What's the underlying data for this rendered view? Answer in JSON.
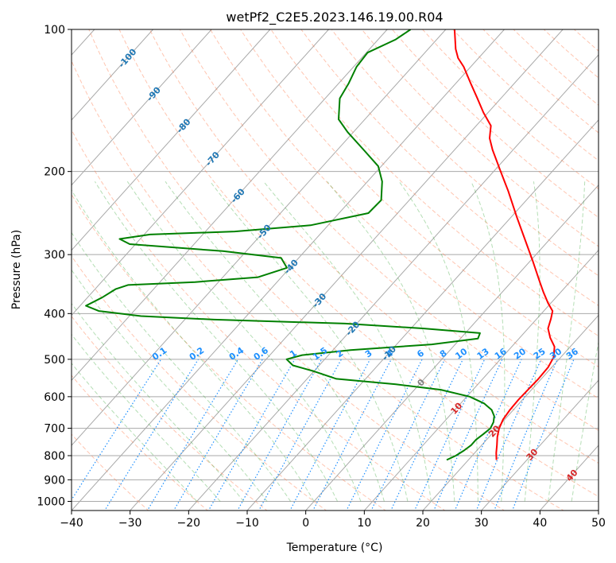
{
  "chart_data": {
    "type": "line",
    "subtype": "skew-t log-p diagram",
    "title": "wetPf2_C2E5.2023.146.19.00.R04",
    "xlabel": "Temperature (°C)",
    "ylabel": "Pressure (hPa)",
    "xlim": [
      -40,
      50
    ],
    "ylim": [
      1050,
      100
    ],
    "x_ticks": [
      -40,
      -30,
      -20,
      -10,
      0,
      10,
      20,
      30,
      40,
      50
    ],
    "x_tick_labels": [
      "−40",
      "−30",
      "−20",
      "−10",
      "0",
      "10",
      "20",
      "30",
      "40",
      "50"
    ],
    "y_ticks": [
      100,
      200,
      300,
      400,
      500,
      600,
      700,
      800,
      900,
      1000
    ],
    "y_tick_labels": [
      "100",
      "200",
      "300",
      "400",
      "500",
      "600",
      "700",
      "800",
      "900",
      "1000"
    ],
    "isotherm_values": [
      -100,
      -90,
      -80,
      -70,
      -60,
      -50,
      -40,
      -30,
      -20,
      -10,
      0,
      10,
      20,
      30,
      40
    ],
    "isotherm_labels": [
      "-100",
      "-90",
      "-80",
      "-70",
      "-60",
      "-50",
      "-40",
      "-30",
      "-20",
      "-10",
      "0",
      "10",
      "20",
      "30",
      "40"
    ],
    "mixing_ratio_values": [
      0.1,
      0.2,
      0.4,
      0.6,
      1,
      1.5,
      2,
      3,
      4,
      6,
      8,
      10,
      13,
      16,
      20,
      25,
      30,
      36
    ],
    "mixing_ratio_labels": [
      "0.1",
      "0.2",
      "0.4",
      "0.6",
      "1",
      "1.5",
      "2",
      "3",
      "4",
      "6",
      "8",
      "10",
      "13",
      "16",
      "20",
      "25",
      "30",
      "36"
    ],
    "series": [
      {
        "name": "Temperature",
        "color": "#ff0000",
        "points": [
          [
            817,
            24.8
          ],
          [
            790,
            23.7
          ],
          [
            760,
            22.6
          ],
          [
            730,
            21.4
          ],
          [
            700,
            20.4
          ],
          [
            670,
            19.7
          ],
          [
            640,
            19.4
          ],
          [
            610,
            19.3
          ],
          [
            580,
            19.4
          ],
          [
            550,
            19.5
          ],
          [
            520,
            19.4
          ],
          [
            495,
            18.8
          ],
          [
            470,
            17.3
          ],
          [
            450,
            15.2
          ],
          [
            430,
            13.4
          ],
          [
            410,
            12.4
          ],
          [
            395,
            11.5
          ],
          [
            380,
            9.5
          ],
          [
            360,
            7.0
          ],
          [
            340,
            4.5
          ],
          [
            310,
            0.5
          ],
          [
            280,
            -4.0
          ],
          [
            250,
            -9.0
          ],
          [
            220,
            -14.5
          ],
          [
            200,
            -18.8
          ],
          [
            180,
            -23.5
          ],
          [
            170,
            -25.8
          ],
          [
            160,
            -27.5
          ],
          [
            150,
            -30.8
          ],
          [
            140,
            -34.0
          ],
          [
            130,
            -37.5
          ],
          [
            120,
            -41.2
          ],
          [
            115,
            -43.5
          ],
          [
            110,
            -45.3
          ],
          [
            100,
            -48.5
          ]
        ]
      },
      {
        "name": "Dewpoint",
        "color": "#008000",
        "points": [
          [
            817,
            16.3
          ],
          [
            800,
            17.2
          ],
          [
            780,
            17.8
          ],
          [
            760,
            18.2
          ],
          [
            740,
            18.2
          ],
          [
            720,
            18.6
          ],
          [
            700,
            18.9
          ],
          [
            680,
            18.5
          ],
          [
            660,
            17.7
          ],
          [
            640,
            16.3
          ],
          [
            620,
            14.0
          ],
          [
            600,
            10.5
          ],
          [
            580,
            4.5
          ],
          [
            565,
            -4.0
          ],
          [
            550,
            -15.0
          ],
          [
            530,
            -20.0
          ],
          [
            515,
            -24.5
          ],
          [
            500,
            -26.5
          ],
          [
            490,
            -24.5
          ],
          [
            478,
            -17.0
          ],
          [
            465,
            -4.0
          ],
          [
            452,
            3.0
          ],
          [
            440,
            2.5
          ],
          [
            430,
            -8.0
          ],
          [
            420,
            -22.0
          ],
          [
            412,
            -45.0
          ],
          [
            405,
            -58.0
          ],
          [
            395,
            -66.0
          ],
          [
            385,
            -69.0
          ],
          [
            370,
            -67.5
          ],
          [
            355,
            -66.5
          ],
          [
            348,
            -65.0
          ],
          [
            343,
            -54.0
          ],
          [
            335,
            -44.0
          ],
          [
            320,
            -40.5
          ],
          [
            305,
            -43.0
          ],
          [
            295,
            -54.0
          ],
          [
            285,
            -71.0
          ],
          [
            278,
            -73.5
          ],
          [
            272,
            -69.0
          ],
          [
            268,
            -55.0
          ],
          [
            260,
            -43.0
          ],
          [
            245,
            -35.0
          ],
          [
            230,
            -34.8
          ],
          [
            210,
            -37.5
          ],
          [
            195,
            -40.5
          ],
          [
            180,
            -45.5
          ],
          [
            165,
            -51.0
          ],
          [
            155,
            -54.5
          ],
          [
            140,
            -57.5
          ],
          [
            130,
            -58.3
          ],
          [
            120,
            -59.5
          ],
          [
            112,
            -59.8
          ],
          [
            105,
            -57.0
          ],
          [
            100,
            -56.0
          ]
        ]
      }
    ],
    "background_lines": [
      "isotherms",
      "dry adiabats",
      "moist adiabats",
      "mixing ratio lines",
      "isobars"
    ],
    "colors": {
      "temperature": "#ff0000",
      "dewpoint": "#008000",
      "isotherm_label": "#1f77b4",
      "isotherm_label_zero": "#808080",
      "isotherm_label_warm": "#d62728",
      "mixing_ratio": "#1e90ff",
      "dry_adiabat": "#ff7f50",
      "moist_adiabat": "#2ca02c",
      "skew_grid": "#a9a9a9"
    }
  }
}
